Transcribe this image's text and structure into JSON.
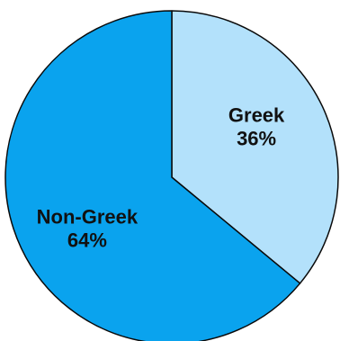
{
  "chart_data": {
    "type": "pie",
    "title": "",
    "slices": [
      {
        "label": "Greek",
        "value": 36,
        "value_label": "36%",
        "color": "#b3e1fb"
      },
      {
        "label": "Non-Greek",
        "value": 64,
        "value_label": "64%",
        "color": "#0aa3ee"
      }
    ],
    "start_angle": "12 o'clock",
    "direction": "clockwise",
    "edge_color": "#0a0a0a",
    "legend": "none"
  }
}
